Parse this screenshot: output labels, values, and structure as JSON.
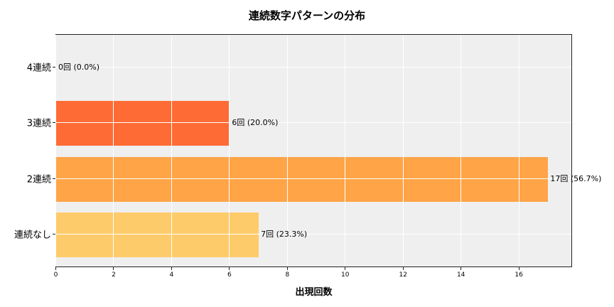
{
  "chart_data": {
    "type": "bar",
    "orientation": "horizontal",
    "title": "連続数字パターンの分布",
    "xlabel": "出現回数",
    "ylabel": "",
    "categories": [
      "4連続",
      "3連続",
      "2連続",
      "連続なし"
    ],
    "values": [
      0,
      6,
      17,
      7
    ],
    "percentages": [
      0.0,
      20.0,
      56.7,
      23.3
    ],
    "bar_labels": [
      "0回 (0.0%)",
      "6回 (20.0%)",
      "17回 (56.7%)",
      "7回 (23.3%)"
    ],
    "colors": [
      "#FF6B35",
      "#FF6B35",
      "#FFA447",
      "#FECB6A"
    ],
    "xlim": [
      0,
      17.85
    ],
    "xticks": [
      0,
      2,
      4,
      6,
      8,
      10,
      12,
      14,
      16
    ],
    "grid": true,
    "background": "#EFEFEF",
    "legend": null
  }
}
